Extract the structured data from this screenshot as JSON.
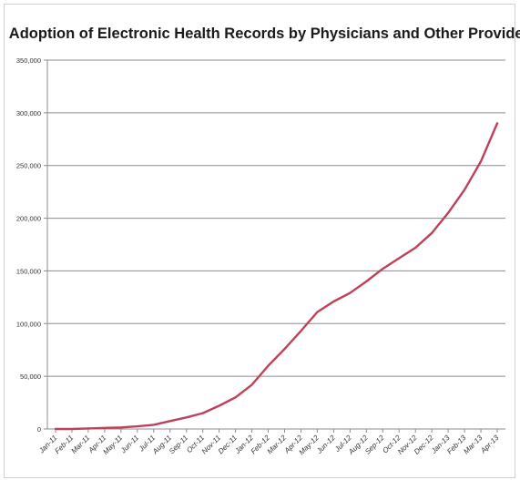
{
  "chart_data": {
    "type": "line",
    "title": "Adoption of Electronic Health Records by Physicians and Other Providers",
    "xlabel": "",
    "ylabel": "",
    "ylim": [
      0,
      350000
    ],
    "y_ticks": [
      0,
      50000,
      100000,
      150000,
      200000,
      250000,
      300000,
      350000
    ],
    "y_tick_labels": [
      "0",
      "50,000",
      "100,000",
      "150,000",
      "200,000",
      "250,000",
      "300,000",
      "350,000"
    ],
    "grid": true,
    "legend": "none",
    "line_color": "#c0405a",
    "categories": [
      "Jan-11",
      "Feb-11",
      "Mar-11",
      "Apr-11",
      "May-11",
      "Jun-11",
      "Jul-11",
      "Aug-11",
      "Sep-11",
      "Oct-11",
      "Nov-11",
      "Dec-11",
      "Jan-12",
      "Feb-12",
      "Mar-12",
      "Apr-12",
      "May-12",
      "Jun-12",
      "Jul-12",
      "Aug-12",
      "Sep-12",
      "Oct-12",
      "Nov-12",
      "Dec-12",
      "Jan-13",
      "Feb-13",
      "Mar-13",
      "Apr-13"
    ],
    "series": [
      {
        "values": [
          0,
          0,
          500,
          1000,
          1500,
          2500,
          4000,
          7500,
          11000,
          15000,
          22000,
          30000,
          42000,
          60000,
          76000,
          93000,
          111000,
          121000,
          129000,
          140000,
          152000,
          162000,
          172000,
          186000,
          205000,
          227000,
          254000,
          290000
        ]
      }
    ]
  }
}
